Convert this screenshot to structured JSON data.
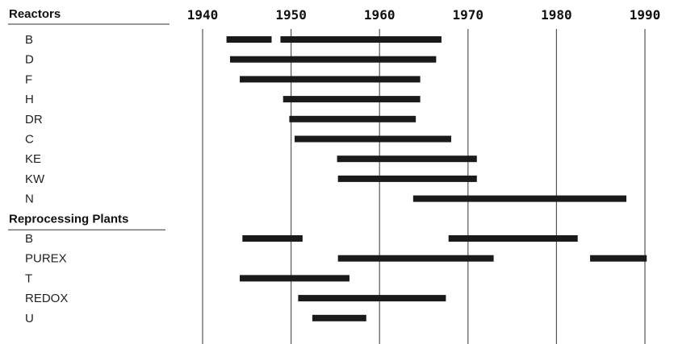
{
  "chart_data": {
    "type": "gantt",
    "x_axis": {
      "ticks": [
        "1940",
        "1950",
        "1960",
        "1970",
        "1980",
        "1990"
      ],
      "range": [
        1940,
        1990
      ]
    },
    "colors": {
      "bar": "#1a1a1a",
      "gridline": "#555555",
      "text": "#222222"
    },
    "groups": [
      {
        "header": "Reactors",
        "rows": [
          {
            "label": "B",
            "spans": [
              [
                1942.7,
                1947.8
              ],
              [
                1948.8,
                1967.0
              ]
            ]
          },
          {
            "label": "D",
            "spans": [
              [
                1943.1,
                1966.4
              ]
            ]
          },
          {
            "label": "F",
            "spans": [
              [
                1944.2,
                1964.6
              ]
            ]
          },
          {
            "label": "H",
            "spans": [
              [
                1949.1,
                1964.6
              ]
            ]
          },
          {
            "label": "DR",
            "spans": [
              [
                1949.8,
                1964.1
              ]
            ]
          },
          {
            "label": "C",
            "spans": [
              [
                1950.4,
                1968.1
              ]
            ]
          },
          {
            "label": "KE",
            "spans": [
              [
                1955.2,
                1971.0
              ]
            ]
          },
          {
            "label": "KW",
            "spans": [
              [
                1955.3,
                1971.0
              ]
            ]
          },
          {
            "label": "N",
            "spans": [
              [
                1963.8,
                1987.9
              ]
            ]
          }
        ]
      },
      {
        "header": "Reprocessing Plants",
        "rows": [
          {
            "label": "B",
            "spans": [
              [
                1944.5,
                1951.3
              ],
              [
                1967.8,
                1982.4
              ]
            ]
          },
          {
            "label": "PUREX",
            "spans": [
              [
                1955.3,
                1972.9
              ],
              [
                1983.8,
                1990.2
              ]
            ]
          },
          {
            "label": "T",
            "spans": [
              [
                1944.2,
                1956.6
              ]
            ]
          },
          {
            "label": "REDOX",
            "spans": [
              [
                1950.8,
                1967.5
              ]
            ]
          },
          {
            "label": "U",
            "spans": [
              [
                1952.4,
                1958.5
              ]
            ]
          }
        ]
      }
    ]
  }
}
